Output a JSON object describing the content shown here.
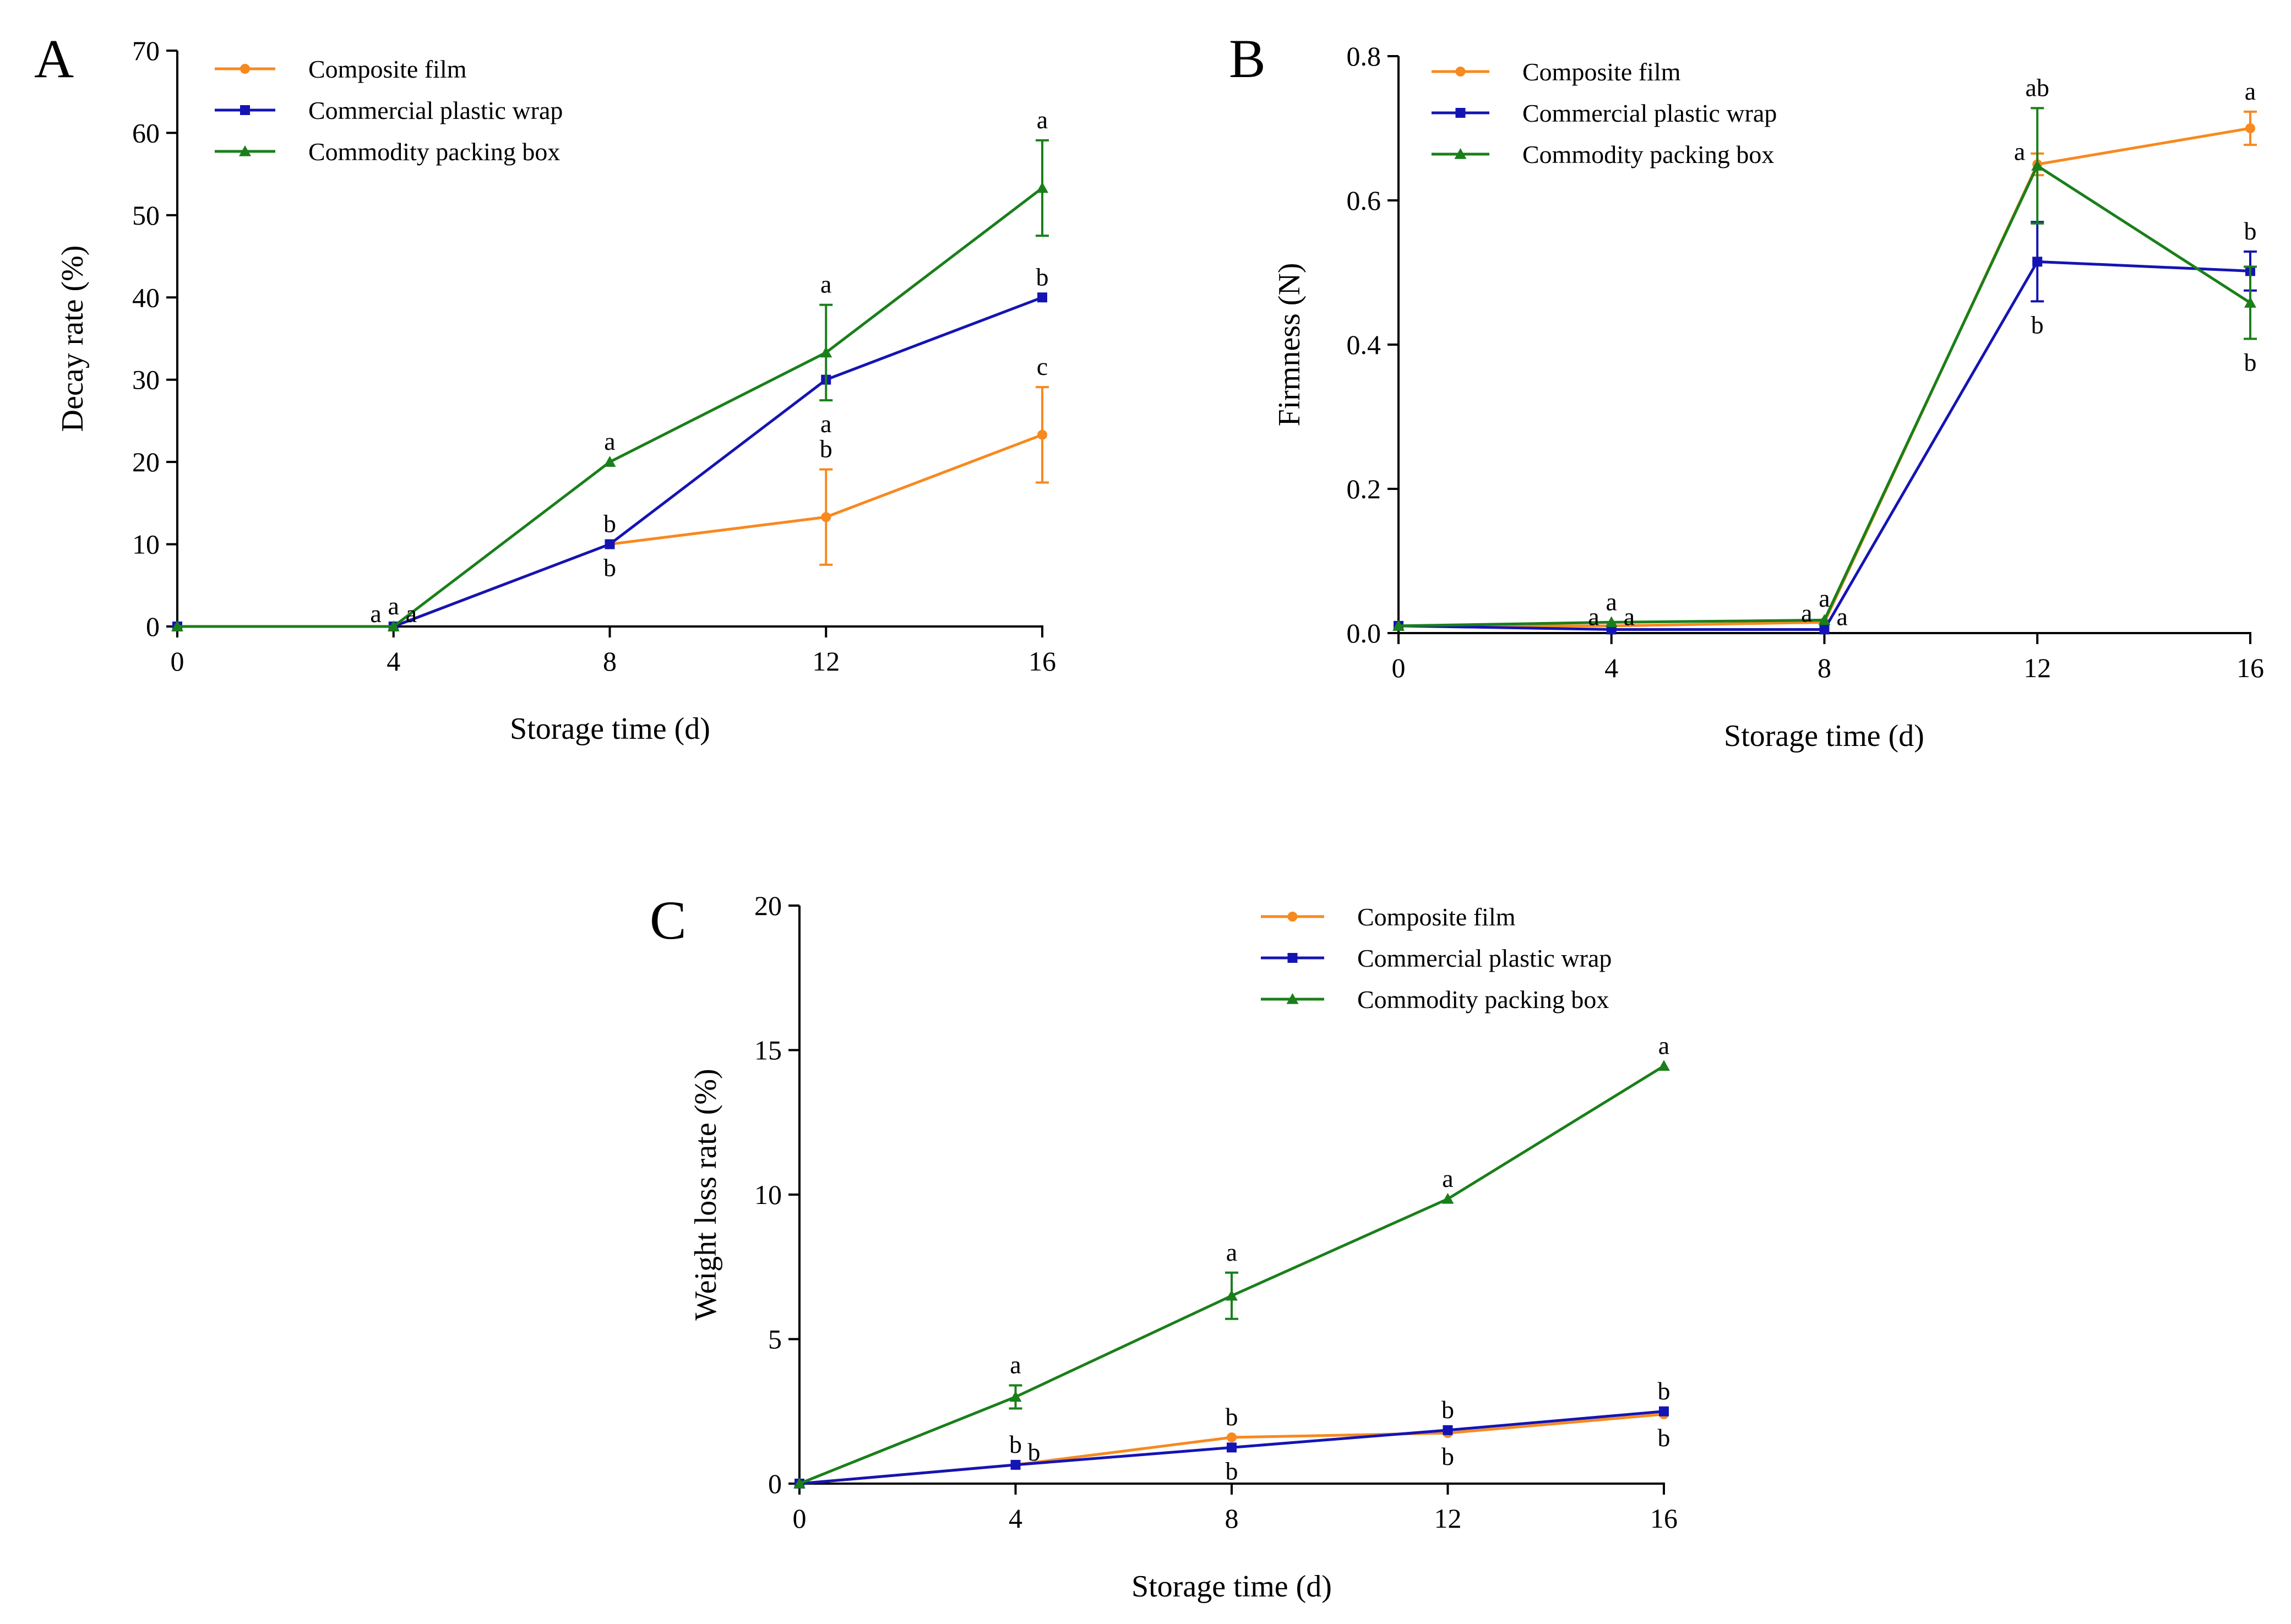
{
  "colors": {
    "composite": "#F7891F",
    "plastic": "#1414B4",
    "box": "#1A7F1A",
    "axis": "#000000"
  },
  "chart_data": [
    {
      "panel": "A",
      "type": "line",
      "xlabel": "Storage time (d)",
      "ylabel": "Decay rate (%)",
      "xlim": [
        0,
        16
      ],
      "ylim": [
        0,
        70
      ],
      "xticks": [
        0,
        4,
        8,
        12,
        16
      ],
      "yticks": [
        0,
        10,
        20,
        30,
        40,
        50,
        60,
        70
      ],
      "legend_position": "top-left",
      "x": [
        0,
        4,
        8,
        12,
        16
      ],
      "series": [
        {
          "name": "Composite film",
          "key": "composite",
          "marker": "circle",
          "values": [
            0,
            0,
            10,
            13.3,
            23.3
          ],
          "errors": [
            0,
            0,
            0,
            5.8,
            5.8
          ]
        },
        {
          "name": "Commercial plastic wrap",
          "key": "plastic",
          "marker": "square",
          "values": [
            0,
            0,
            10,
            30,
            40
          ],
          "errors": [
            0,
            0,
            0,
            0,
            0
          ]
        },
        {
          "name": "Commodity packing box",
          "key": "box",
          "marker": "triangle",
          "values": [
            0,
            0,
            20,
            33.3,
            53.3
          ],
          "errors": [
            0,
            0,
            0,
            5.8,
            5.8
          ]
        }
      ],
      "significance": [
        {
          "x": 4,
          "y": 0,
          "text": "a",
          "pos": "left"
        },
        {
          "x": 4,
          "y": 0,
          "text": "a",
          "pos": "above"
        },
        {
          "x": 4,
          "y": 0,
          "text": "a",
          "pos": "right"
        },
        {
          "x": 8,
          "y": 20,
          "text": "a",
          "pos": "above"
        },
        {
          "x": 8,
          "y": 10,
          "text": "b",
          "pos": "above"
        },
        {
          "x": 8,
          "y": 10,
          "text": "b",
          "pos": "below"
        },
        {
          "x": 12,
          "y": 39.1,
          "text": "a",
          "pos": "above"
        },
        {
          "x": 12,
          "y": 27.5,
          "text": "a",
          "pos": "below"
        },
        {
          "x": 12,
          "y": 19.1,
          "text": "b",
          "pos": "above"
        },
        {
          "x": 16,
          "y": 59.1,
          "text": "a",
          "pos": "above"
        },
        {
          "x": 16,
          "y": 40,
          "text": "b",
          "pos": "above"
        },
        {
          "x": 16,
          "y": 29.1,
          "text": "c",
          "pos": "above"
        }
      ]
    },
    {
      "panel": "B",
      "type": "line",
      "xlabel": "Storage time (d)",
      "ylabel": "Firmness (N)",
      "xlim": [
        0,
        16
      ],
      "ylim": [
        0,
        0.8
      ],
      "xticks": [
        0,
        4,
        8,
        12,
        16
      ],
      "yticks": [
        0.0,
        0.2,
        0.4,
        0.6,
        0.8
      ],
      "ytick_labels": [
        "0.0",
        "0.2",
        "0.4",
        "0.6",
        "0.8"
      ],
      "legend_position": "top-left",
      "x": [
        0,
        4,
        8,
        12,
        16
      ],
      "series": [
        {
          "name": "Composite film",
          "key": "composite",
          "marker": "circle",
          "values": [
            0.01,
            0.01,
            0.015,
            0.65,
            0.7
          ],
          "errors": [
            0,
            0,
            0,
            0.015,
            0.023
          ]
        },
        {
          "name": "Commercial plastic wrap",
          "key": "plastic",
          "marker": "square",
          "values": [
            0.01,
            0.005,
            0.005,
            0.515,
            0.502
          ],
          "errors": [
            0,
            0,
            0,
            0.055,
            0.027
          ]
        },
        {
          "name": "Commodity packing box",
          "key": "box",
          "marker": "triangle",
          "values": [
            0.01,
            0.015,
            0.018,
            0.648,
            0.458
          ],
          "errors": [
            0,
            0,
            0,
            0.08,
            0.05
          ]
        }
      ],
      "significance": [
        {
          "x": 4,
          "y": 0.005,
          "text": "a",
          "pos": "left"
        },
        {
          "x": 4,
          "y": 0.015,
          "text": "a",
          "pos": "above"
        },
        {
          "x": 4,
          "y": 0.005,
          "text": "a",
          "pos": "right"
        },
        {
          "x": 8,
          "y": 0.01,
          "text": "a",
          "pos": "left"
        },
        {
          "x": 8,
          "y": 0.02,
          "text": "a",
          "pos": "above"
        },
        {
          "x": 8,
          "y": 0.005,
          "text": "a",
          "pos": "right"
        },
        {
          "x": 12,
          "y": 0.728,
          "text": "ab",
          "pos": "above"
        },
        {
          "x": 12,
          "y": 0.65,
          "text": "a",
          "pos": "left"
        },
        {
          "x": 12,
          "y": 0.46,
          "text": "b",
          "pos": "below"
        },
        {
          "x": 16,
          "y": 0.723,
          "text": "a",
          "pos": "above"
        },
        {
          "x": 16,
          "y": 0.529,
          "text": "b",
          "pos": "above"
        },
        {
          "x": 16,
          "y": 0.408,
          "text": "b",
          "pos": "below"
        }
      ]
    },
    {
      "panel": "C",
      "type": "line",
      "xlabel": "Storage time (d)",
      "ylabel": "Weight loss rate (%)",
      "xlim": [
        0,
        16
      ],
      "ylim": [
        0,
        20
      ],
      "xticks": [
        0,
        4,
        8,
        12,
        16
      ],
      "yticks": [
        0,
        5,
        10,
        15,
        20
      ],
      "legend_position": "top-right",
      "x": [
        0,
        4,
        8,
        12,
        16
      ],
      "series": [
        {
          "name": "Composite film",
          "key": "composite",
          "marker": "circle",
          "values": [
            0,
            0.65,
            1.6,
            1.75,
            2.4
          ],
          "errors": [
            0,
            0,
            0,
            0,
            0
          ]
        },
        {
          "name": "Commercial plastic wrap",
          "key": "plastic",
          "marker": "square",
          "values": [
            0,
            0.65,
            1.25,
            1.85,
            2.5
          ],
          "errors": [
            0,
            0,
            0,
            0,
            0
          ]
        },
        {
          "name": "Commodity packing box",
          "key": "box",
          "marker": "triangle",
          "values": [
            0,
            3.0,
            6.5,
            9.85,
            14.45
          ],
          "errors": [
            0,
            0.4,
            0.8,
            0,
            0
          ]
        }
      ],
      "significance": [
        {
          "x": 4,
          "y": 3.4,
          "text": "a",
          "pos": "above"
        },
        {
          "x": 4,
          "y": 0.65,
          "text": "b",
          "pos": "above"
        },
        {
          "x": 4,
          "y": 0.65,
          "text": "b",
          "pos": "right"
        },
        {
          "x": 8,
          "y": 7.3,
          "text": "a",
          "pos": "above"
        },
        {
          "x": 8,
          "y": 1.6,
          "text": "b",
          "pos": "above"
        },
        {
          "x": 8,
          "y": 1.25,
          "text": "b",
          "pos": "below"
        },
        {
          "x": 12,
          "y": 9.85,
          "text": "a",
          "pos": "above"
        },
        {
          "x": 12,
          "y": 1.85,
          "text": "b",
          "pos": "above"
        },
        {
          "x": 12,
          "y": 1.75,
          "text": "b",
          "pos": "below"
        },
        {
          "x": 16,
          "y": 14.45,
          "text": "a",
          "pos": "above"
        },
        {
          "x": 16,
          "y": 2.5,
          "text": "b",
          "pos": "above"
        },
        {
          "x": 16,
          "y": 2.4,
          "text": "b",
          "pos": "below"
        }
      ]
    }
  ]
}
